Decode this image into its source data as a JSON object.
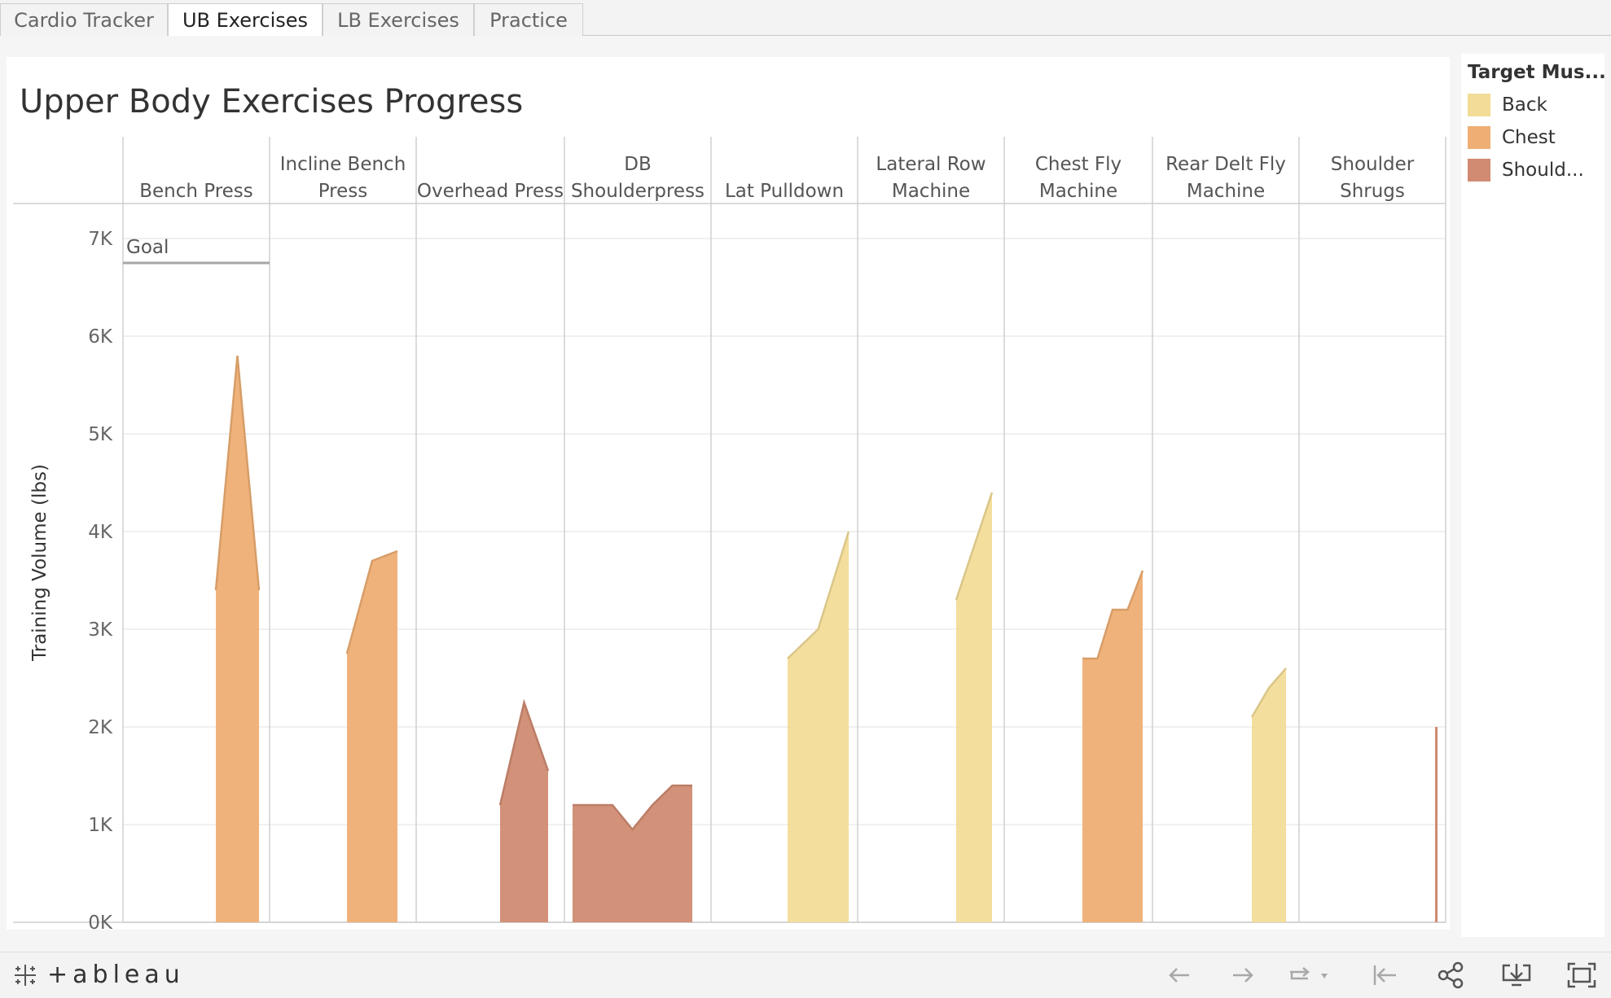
{
  "tabs": [
    {
      "label": "Cardio Tracker",
      "active": false
    },
    {
      "label": "UB Exercises",
      "active": true
    },
    {
      "label": "LB Exercises",
      "active": false
    },
    {
      "label": "Practice",
      "active": false
    }
  ],
  "chart_data": {
    "type": "area",
    "title": "Upper Body Exercises Progress",
    "ylabel": "Training Volume (lbs)",
    "xlabel": "",
    "ylim": [
      0,
      7200
    ],
    "yticks": [
      0,
      1000,
      2000,
      3000,
      4000,
      5000,
      6000,
      7000
    ],
    "ytick_labels": [
      "0K",
      "1K",
      "2K",
      "3K",
      "4K",
      "5K",
      "6K",
      "7K"
    ],
    "grid": true,
    "legend_position": "right",
    "colors": {
      "Back": "#f2dc98",
      "Chest": "#efae74",
      "Shoulders": "#d08b72"
    },
    "reference_line": {
      "label": "Goal",
      "value": 6750,
      "panel": "Bench Press"
    },
    "panels": [
      {
        "name": "Bench Press",
        "muscle": "Chest",
        "values": [
          3400,
          4600,
          5800,
          4600,
          3400
        ]
      },
      {
        "name": "Incline Bench Press",
        "muscle": "Chest",
        "values": [
          2750,
          3700,
          3800
        ]
      },
      {
        "name": "Overhead Press",
        "muscle": "Shoulders",
        "values": [
          1200,
          2250,
          1550
        ]
      },
      {
        "name": "DB Shoulderpress",
        "muscle": "Shoulders",
        "values": [
          1200,
          1200,
          1200,
          950,
          1200,
          1400,
          1400
        ]
      },
      {
        "name": "Lat Pulldown",
        "muscle": "Back",
        "values": [
          2700,
          3000,
          4000
        ]
      },
      {
        "name": "Lateral Row Machine",
        "muscle": "Back",
        "values": [
          3300,
          4400
        ]
      },
      {
        "name": "Chest Fly Machine",
        "muscle": "Chest",
        "values": [
          2700,
          2700,
          3200,
          3200,
          3600
        ]
      },
      {
        "name": "Rear Delt Fly Machine",
        "muscle": "Back",
        "values": [
          2100,
          2400,
          2600
        ]
      },
      {
        "name": "Shoulder Shrugs",
        "muscle": "Shoulders",
        "values": [
          2000
        ]
      }
    ]
  },
  "legend": {
    "title": "Target Mus...",
    "items": [
      {
        "label": "Back",
        "color": "#f2dc98"
      },
      {
        "label": "Chest",
        "color": "#efae74"
      },
      {
        "label": "Should...",
        "color": "#d08b72"
      }
    ]
  },
  "footer": {
    "logo_text": "+ableau",
    "tools": [
      "undo-icon",
      "redo-icon",
      "revert-icon",
      "revert-all-icon",
      "share-icon",
      "download-icon",
      "fullscreen-icon"
    ]
  }
}
